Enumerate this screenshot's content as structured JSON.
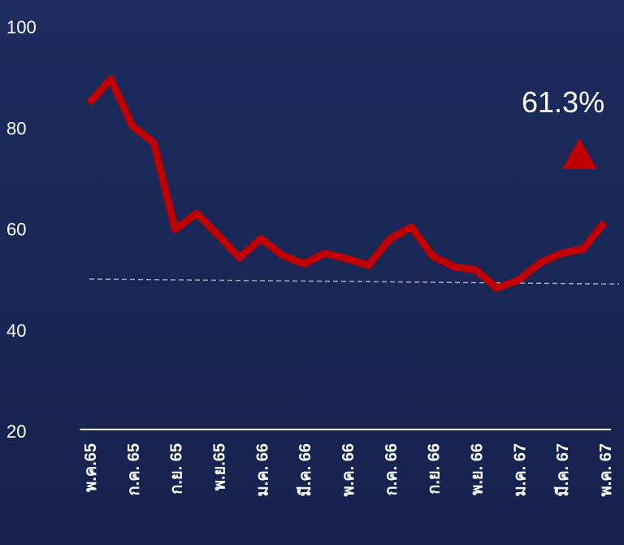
{
  "chart_data": {
    "type": "line",
    "categories": [
      "พ.ค.65",
      null,
      "ก.ค. 65",
      null,
      "ก.ย. 65",
      null,
      "พ.ย.65",
      null,
      "ม.ค. 66",
      null,
      "มี.ค. 66",
      null,
      "พ.ค. 66",
      null,
      "ก.ค. 66",
      null,
      "ก.ย. 66",
      null,
      "พ.ย. 66",
      null,
      "ม.ค. 67",
      null,
      "มี.ค. 67",
      null,
      "พ.ค. 67"
    ],
    "values": [
      84.9,
      89.7,
      80.4,
      77.1,
      59.9,
      63.1,
      58.8,
      54.3,
      58.1,
      54.8,
      53.1,
      55.2,
      54.1,
      52.8,
      58.0,
      60.4,
      54.6,
      52.5,
      51.9,
      48.3,
      49.9,
      53.3,
      55.2,
      56.0,
      61.3
    ],
    "color": "#c00000",
    "ylim": [
      20,
      100
    ],
    "yticks": [
      20,
      40,
      60,
      80,
      100
    ],
    "reference_line": {
      "start": 50.1,
      "end": 49.1
    },
    "annotation": "61.3%"
  }
}
